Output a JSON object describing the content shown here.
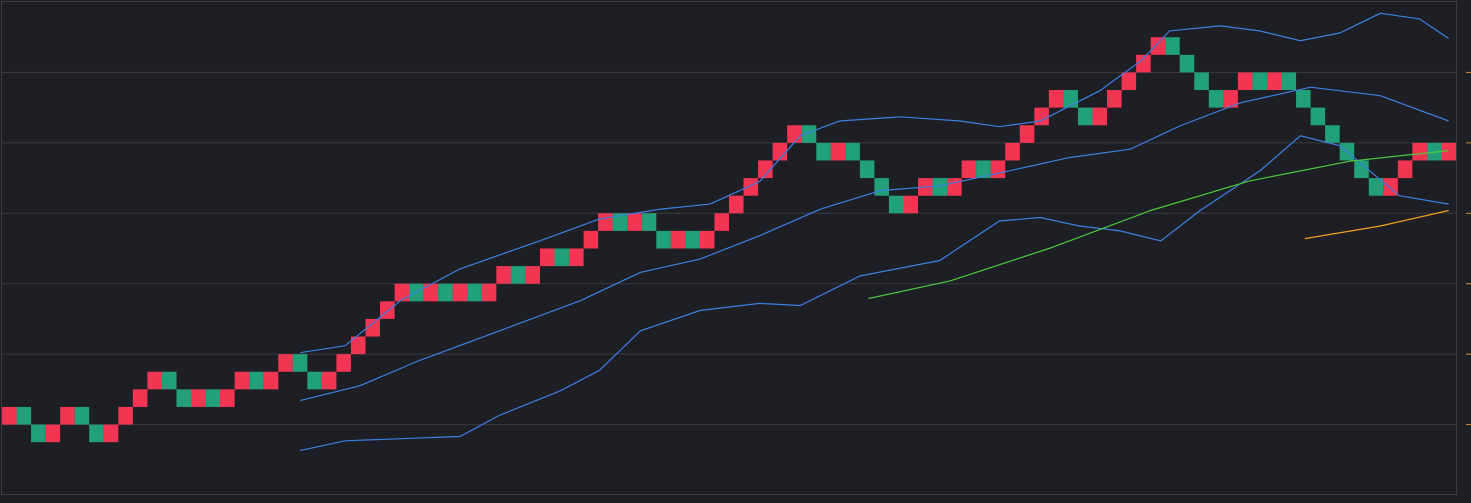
{
  "chart_data": {
    "type": "renko",
    "brick_size": 0.25,
    "up_color": "#f23553",
    "down_color": "#22a07a",
    "xlim": [
      0,
      100
    ],
    "ylim": [
      0,
      7
    ],
    "yticks": [
      1,
      2,
      3,
      4,
      5,
      6
    ],
    "grid": true,
    "values": [
      1.25,
      1.25,
      1,
      1,
      1.25,
      1.25,
      1,
      1,
      1.25,
      1.5,
      1.75,
      1.75,
      1.5,
      1.5,
      1.5,
      1.5,
      1.75,
      1.75,
      1.75,
      2,
      2,
      1.75,
      1.75,
      2,
      2.25,
      2.5,
      2.75,
      3,
      3,
      3,
      3,
      3,
      3,
      3,
      3.25,
      3.25,
      3.25,
      3.5,
      3.5,
      3.5,
      3.75,
      4,
      4,
      4,
      4,
      3.75,
      3.75,
      3.75,
      3.75,
      4,
      4.25,
      4.5,
      4.75,
      5,
      5.25,
      5.25,
      5,
      5,
      5,
      4.75,
      4.5,
      4.25,
      4.25,
      4.5,
      4.5,
      4.5,
      4.75,
      4.75,
      4.75,
      5,
      5.25,
      5.5,
      5.75,
      5.75,
      5.5,
      5.5,
      5.75,
      6,
      6.25,
      6.5,
      6.5,
      6.25,
      6,
      5.75,
      5.75,
      6,
      6,
      6,
      6,
      5.75,
      5.5,
      5.25,
      5,
      4.75,
      4.5,
      4.5,
      4.75,
      5,
      5,
      5
    ],
    "up": [
      true,
      false,
      false,
      true,
      true,
      false,
      false,
      true,
      true,
      true,
      true,
      false,
      false,
      true,
      false,
      true,
      true,
      false,
      true,
      true,
      false,
      false,
      true,
      true,
      true,
      true,
      true,
      true,
      false,
      true,
      false,
      true,
      false,
      true,
      true,
      false,
      true,
      true,
      false,
      true,
      true,
      true,
      false,
      true,
      false,
      false,
      true,
      false,
      true,
      true,
      true,
      true,
      true,
      true,
      true,
      false,
      false,
      true,
      false,
      false,
      false,
      false,
      true,
      true,
      false,
      true,
      true,
      false,
      true,
      true,
      true,
      true,
      true,
      false,
      false,
      true,
      true,
      true,
      true,
      true,
      false,
      false,
      false,
      false,
      true,
      true,
      false,
      true,
      false,
      false,
      false,
      false,
      false,
      false,
      false,
      true,
      true,
      true,
      false,
      true
    ],
    "lines": [
      {
        "color": "#3d7fe0",
        "x": [
          20.5,
          23.6,
          27.4,
          31.5,
          37.0,
          41.1,
          45.3,
          48.7,
          52.1,
          54.9,
          57.6,
          61.8,
          65.9,
          68.6,
          71.4,
          75.5,
          78.3,
          80.3,
          83.8,
          86.5,
          89.3,
          92.0,
          94.8,
          97.5,
          99.5
        ],
        "values": [
          2.02,
          2.12,
          2.76,
          3.21,
          3.61,
          3.92,
          4.06,
          4.13,
          4.45,
          5.1,
          5.31,
          5.37,
          5.31,
          5.23,
          5.31,
          5.74,
          6.16,
          6.59,
          6.66,
          6.59,
          6.45,
          6.56,
          6.84,
          6.76,
          6.48
        ]
      },
      {
        "color": "#3d7fe0",
        "x": [
          20.5,
          24.6,
          28.7,
          34.2,
          39.8,
          43.9,
          48.0,
          52.1,
          56.3,
          60.4,
          64.5,
          68.6,
          73.4,
          77.6,
          81.0,
          85.2,
          90.0,
          94.8,
          99.5
        ],
        "values": [
          1.34,
          1.55,
          1.91,
          2.33,
          2.76,
          3.16,
          3.35,
          3.68,
          4.06,
          4.32,
          4.39,
          4.57,
          4.79,
          4.91,
          5.24,
          5.57,
          5.79,
          5.67,
          5.31
        ]
      },
      {
        "color": "#3d7fe0",
        "x": [
          20.5,
          23.6,
          27.4,
          31.5,
          34.2,
          38.4,
          41.1,
          43.9,
          48.0,
          52.1,
          54.9,
          59.0,
          64.5,
          68.6,
          71.4,
          74.1,
          76.9,
          79.7,
          82.4,
          86.5,
          89.3,
          92.0,
          96.1,
          99.5
        ],
        "values": [
          0.63,
          0.77,
          0.8,
          0.83,
          1.13,
          1.48,
          1.77,
          2.33,
          2.62,
          2.72,
          2.69,
          3.11,
          3.33,
          3.89,
          3.94,
          3.82,
          3.75,
          3.61,
          4.04,
          4.6,
          5.1,
          4.96,
          4.25,
          4.13
        ]
      },
      {
        "color": "#4cc93a",
        "x": [
          59.6,
          65.2,
          72.0,
          79.0,
          85.8,
          92.7,
          99.5
        ],
        "values": [
          2.79,
          3.04,
          3.5,
          4.04,
          4.46,
          4.74,
          4.89
        ]
      },
      {
        "color": "#f0a020",
        "x": [
          89.6,
          94.8,
          99.5
        ],
        "values": [
          3.64,
          3.82,
          4.04
        ]
      }
    ]
  }
}
